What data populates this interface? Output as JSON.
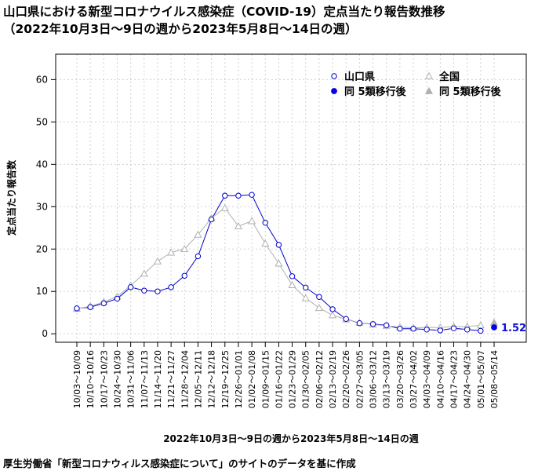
{
  "chart_data": {
    "type": "line",
    "title_line1": "山口県における新型コロナウイルス感染症（COVID-19）定点当たり報告数推移",
    "title_line2": "（2022年10月3日～9日の週から2023年5月8日～14日の週）",
    "xlabel": "2022年10月3日～9日の週から2023年5月8日～14日の週",
    "ylabel": "定点当たり報告数",
    "ylim": [
      -2,
      66
    ],
    "yticks": [
      0,
      10,
      20,
      30,
      40,
      50,
      60
    ],
    "grid": true,
    "legend_position": "top-right",
    "categories": [
      "10/03～10/09",
      "10/10～10/16",
      "10/17～10/23",
      "10/24～10/30",
      "10/31～11/06",
      "11/07～11/13",
      "11/14～11/20",
      "11/21～11/27",
      "11/28～12/04",
      "12/05～12/11",
      "12/12～12/18",
      "12/19～12/25",
      "12/26～01/01",
      "01/02～01/08",
      "01/09～01/15",
      "01/16～01/22",
      "01/23～01/29",
      "01/30～02/05",
      "02/06～02/12",
      "02/13～02/19",
      "02/20～02/26",
      "02/27～03/05",
      "03/06～03/12",
      "03/13～03/19",
      "03/20～03/26",
      "03/27～04/02",
      "04/03～04/09",
      "04/10～04/16",
      "04/17～04/23",
      "04/24～04/30",
      "05/01～05/07",
      "05/08～05/14"
    ],
    "series": [
      {
        "name": "山口県",
        "color": "#0000cc",
        "marker": "circle-open",
        "values": [
          6.0,
          6.3,
          7.2,
          8.3,
          11.0,
          10.2,
          10.0,
          11.0,
          13.7,
          18.3,
          27.0,
          32.6,
          32.6,
          32.8,
          26.2,
          21.0,
          13.6,
          10.9,
          8.7,
          5.8,
          3.5,
          2.5,
          2.3,
          2.0,
          1.2,
          1.2,
          1.0,
          0.8,
          1.3,
          1.0,
          0.7,
          null
        ]
      },
      {
        "name": "全国",
        "color": "#b0b0b0",
        "marker": "triangle-open",
        "values": [
          5.9,
          6.5,
          7.5,
          8.8,
          11.4,
          14.2,
          17.1,
          19.2,
          20.0,
          23.4,
          27.3,
          29.7,
          25.4,
          26.6,
          21.3,
          16.6,
          11.5,
          8.4,
          6.1,
          4.4,
          3.4,
          2.6,
          2.2,
          1.9,
          1.6,
          1.4,
          1.5,
          1.5,
          1.7,
          1.7,
          2.0,
          null
        ]
      },
      {
        "name": "同 5類移行後",
        "color": "#0000ee",
        "marker": "circle-filled",
        "values": [
          null,
          null,
          null,
          null,
          null,
          null,
          null,
          null,
          null,
          null,
          null,
          null,
          null,
          null,
          null,
          null,
          null,
          null,
          null,
          null,
          null,
          null,
          null,
          null,
          null,
          null,
          null,
          null,
          null,
          null,
          null,
          1.52
        ]
      },
      {
        "name": "同 5類移行後",
        "color": "#b0b0b0",
        "marker": "triangle-filled",
        "values": [
          null,
          null,
          null,
          null,
          null,
          null,
          null,
          null,
          null,
          null,
          null,
          null,
          null,
          null,
          null,
          null,
          null,
          null,
          null,
          null,
          null,
          null,
          null,
          null,
          null,
          null,
          null,
          null,
          null,
          null,
          null,
          2.63
        ]
      }
    ],
    "annotation": {
      "text": "1.52",
      "category_index": 31,
      "value": 1.52
    }
  },
  "source_note": "厚生労働省「新型コロナウィルス感染症について」のサイトのデータを基に作成"
}
